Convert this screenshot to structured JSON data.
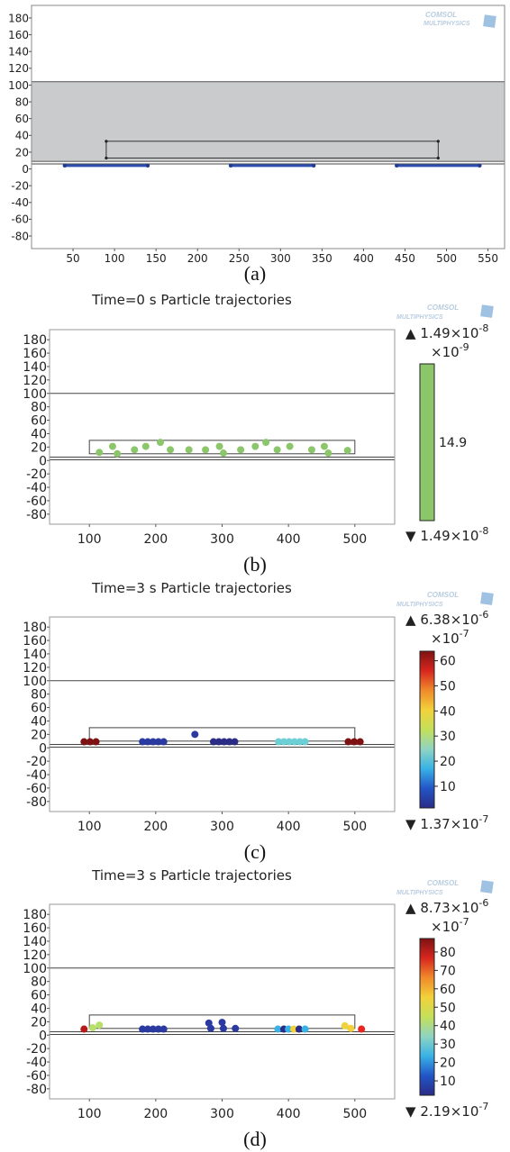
{
  "logo": {
    "line1": "COMSOL",
    "line2": "MULTIPHYSICS"
  },
  "panels": [
    {
      "caption": "(a)",
      "title": "",
      "chart_data": {
        "type": "diagram",
        "x_ticks": [
          50,
          100,
          150,
          200,
          250,
          300,
          350,
          400,
          450,
          500,
          550
        ],
        "y_ticks": [
          180,
          160,
          140,
          120,
          100,
          80,
          60,
          40,
          20,
          0,
          -20,
          -40,
          -60,
          -80
        ],
        "xlim": [
          0,
          570
        ],
        "ylim": [
          -95,
          195
        ],
        "channel_band": [
          9,
          104
        ],
        "inner_rect": {
          "x": [
            90,
            490
          ],
          "y": [
            13,
            33
          ]
        },
        "electrodes": [
          [
            40,
            140
          ],
          [
            240,
            340
          ],
          [
            440,
            540
          ]
        ],
        "electrode_y": 4
      }
    },
    {
      "caption": "(b)",
      "title": "Time=0 s  Particle trajectories",
      "colorbar": {
        "max_label": "1.49×10",
        "max_exp": "-8",
        "scale_label": "×10",
        "scale_exp": "-9",
        "min_label": "1.49×10",
        "min_exp": "-8",
        "ticks": [
          "14.9"
        ],
        "colors": [
          "#8cc66b"
        ]
      },
      "chart_data": {
        "type": "scatter",
        "x_ticks": [
          100,
          200,
          300,
          400,
          500
        ],
        "y_ticks": [
          180,
          160,
          140,
          120,
          100,
          80,
          60,
          40,
          20,
          0,
          -20,
          -40,
          -60,
          -80
        ],
        "xlim": [
          40,
          560
        ],
        "ylim": [
          -95,
          195
        ],
        "upper_line": 100,
        "inner_rect": {
          "x": [
            100,
            500
          ],
          "y": [
            10,
            30
          ]
        },
        "floor_lines": [
          5,
          1
        ],
        "points": [
          [
            115,
            12,
            "#8cc66b"
          ],
          [
            135,
            21,
            "#8cc66b"
          ],
          [
            142,
            10,
            "#8cc66b"
          ],
          [
            168,
            16,
            "#8cc66b"
          ],
          [
            185,
            21,
            "#8cc66b"
          ],
          [
            207,
            27,
            "#8cc66b"
          ],
          [
            222,
            16,
            "#8cc66b"
          ],
          [
            250,
            16,
            "#8cc66b"
          ],
          [
            275,
            16,
            "#8cc66b"
          ],
          [
            296,
            21,
            "#8cc66b"
          ],
          [
            302,
            11,
            "#8cc66b"
          ],
          [
            328,
            16,
            "#8cc66b"
          ],
          [
            350,
            21,
            "#8cc66b"
          ],
          [
            366,
            27,
            "#8cc66b"
          ],
          [
            383,
            16,
            "#8cc66b"
          ],
          [
            402,
            21,
            "#8cc66b"
          ],
          [
            435,
            16,
            "#8cc66b"
          ],
          [
            454,
            21,
            "#8cc66b"
          ],
          [
            460,
            11,
            "#8cc66b"
          ],
          [
            489,
            15,
            "#8cc66b"
          ]
        ]
      }
    },
    {
      "caption": "(c)",
      "title": "Time=3 s  Particle trajectories",
      "colorbar": {
        "max_label": "6.38×10",
        "max_exp": "-6",
        "scale_label": "×10",
        "scale_exp": "-7",
        "min_label": "1.37×10",
        "min_exp": "-7",
        "ticks": [
          "60",
          "50",
          "40",
          "30",
          "20",
          "10"
        ],
        "range": [
          1.37,
          63.8
        ],
        "colors": [
          "#2a2c86",
          "#2255c8",
          "#38b2e6",
          "#8fd4c2",
          "#c4e05a",
          "#f2d23a",
          "#f08a2a",
          "#d8261f",
          "#7e1212"
        ]
      },
      "chart_data": {
        "type": "scatter",
        "x_ticks": [
          100,
          200,
          300,
          400,
          500
        ],
        "y_ticks": [
          180,
          160,
          140,
          120,
          100,
          80,
          60,
          40,
          20,
          0,
          -20,
          -40,
          -60,
          -80
        ],
        "xlim": [
          40,
          560
        ],
        "ylim": [
          -95,
          195
        ],
        "upper_line": 100,
        "inner_rect": {
          "x": [
            100,
            500
          ],
          "y": [
            10,
            30
          ]
        },
        "floor_lines": [
          5,
          1
        ],
        "points": [
          [
            92,
            9,
            "#7e1212"
          ],
          [
            101,
            9,
            "#7e1212"
          ],
          [
            110,
            9,
            "#7e1212"
          ],
          [
            180,
            9,
            "#2a3aa0"
          ],
          [
            188,
            9,
            "#2a3aa0"
          ],
          [
            196,
            9,
            "#2a3aa0"
          ],
          [
            204,
            9,
            "#2a3aa0"
          ],
          [
            212,
            9,
            "#2a3aa0"
          ],
          [
            259,
            20,
            "#2a3aa0"
          ],
          [
            287,
            9,
            "#2a2c86"
          ],
          [
            295,
            9,
            "#2a2c86"
          ],
          [
            303,
            9,
            "#2a2c86"
          ],
          [
            311,
            9,
            "#2a2c86"
          ],
          [
            319,
            9,
            "#2a2c86"
          ],
          [
            385,
            9,
            "#6ccfd6"
          ],
          [
            393,
            9,
            "#6ccfd6"
          ],
          [
            401,
            9,
            "#6ccfd6"
          ],
          [
            409,
            9,
            "#6ccfd6"
          ],
          [
            417,
            9,
            "#6ccfd6"
          ],
          [
            425,
            9,
            "#6ccfd6"
          ],
          [
            490,
            9,
            "#7e1212"
          ],
          [
            499,
            9,
            "#7e1212"
          ],
          [
            508,
            9,
            "#7e1212"
          ]
        ]
      }
    },
    {
      "caption": "(d)",
      "title": "Time=3 s  Particle trajectories",
      "colorbar": {
        "max_label": "8.73×10",
        "max_exp": "-6",
        "scale_label": "×10",
        "scale_exp": "-7",
        "min_label": "2.19×10",
        "min_exp": "-7",
        "ticks": [
          "80",
          "70",
          "60",
          "50",
          "40",
          "30",
          "20",
          "10"
        ],
        "range": [
          2.19,
          87.3
        ],
        "colors": [
          "#2a2c86",
          "#2255c8",
          "#38b2e6",
          "#8fd4c2",
          "#c4e05a",
          "#f2d23a",
          "#f08a2a",
          "#d8261f",
          "#7e1212"
        ]
      },
      "chart_data": {
        "type": "scatter",
        "x_ticks": [
          100,
          200,
          300,
          400,
          500
        ],
        "y_ticks": [
          180,
          160,
          140,
          120,
          100,
          80,
          60,
          40,
          20,
          0,
          -20,
          -40,
          -60,
          -80
        ],
        "xlim": [
          40,
          560
        ],
        "ylim": [
          -95,
          195
        ],
        "upper_line": 100,
        "inner_rect": {
          "x": [
            100,
            500
          ],
          "y": [
            10,
            30
          ]
        },
        "floor_lines": [
          5,
          1
        ],
        "points": [
          [
            92,
            9,
            "#b81a1a"
          ],
          [
            105,
            11,
            "#b6e06a"
          ],
          [
            115,
            15,
            "#b6e06a"
          ],
          [
            180,
            9,
            "#2a3aa0"
          ],
          [
            188,
            9,
            "#2a3aa0"
          ],
          [
            196,
            9,
            "#2a3aa0"
          ],
          [
            204,
            9,
            "#2a3aa0"
          ],
          [
            212,
            9,
            "#2a3aa0"
          ],
          [
            280,
            18,
            "#2a3aa0"
          ],
          [
            283,
            10,
            "#2a3aa0"
          ],
          [
            300,
            19,
            "#2a3aa0"
          ],
          [
            302,
            10,
            "#2a3aa0"
          ],
          [
            320,
            10,
            "#2a3aa0"
          ],
          [
            384,
            9,
            "#38b2e6"
          ],
          [
            393,
            9,
            "#2a2c86"
          ],
          [
            400,
            9,
            "#38b2e6"
          ],
          [
            408,
            9,
            "#f2d23a"
          ],
          [
            416,
            9,
            "#2a2c86"
          ],
          [
            425,
            9,
            "#38b2e6"
          ],
          [
            485,
            14,
            "#f2d23a"
          ],
          [
            494,
            10,
            "#f2d23a"
          ],
          [
            510,
            9,
            "#e8251f"
          ]
        ]
      }
    }
  ]
}
